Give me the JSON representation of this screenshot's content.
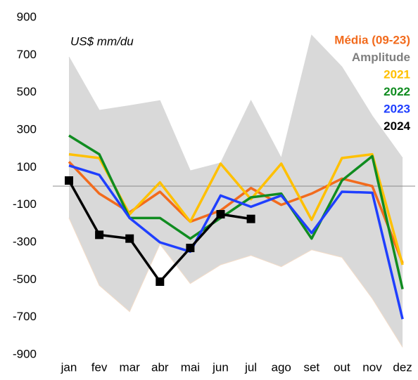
{
  "chart_data": {
    "type": "line",
    "subtitle": "US$ mm/du",
    "categories": [
      "jan",
      "fev",
      "mar",
      "abr",
      "mai",
      "jun",
      "jul",
      "ago",
      "set",
      "out",
      "nov",
      "dez"
    ],
    "band": {
      "name": "Amplitude",
      "color": "#d9d9d9",
      "label_color": "#7f7f7f",
      "upper": [
        690,
        405,
        430,
        457,
        82,
        124,
        457,
        150,
        806,
        637,
        375,
        150
      ],
      "lower": [
        -170,
        -530,
        -670,
        -310,
        -520,
        -420,
        -370,
        -430,
        -340,
        -380,
        -600,
        -860
      ]
    },
    "series": [
      {
        "name": "Média (09-23)",
        "color": "#f26b1d",
        "values": [
          130,
          -40,
          -140,
          -30,
          -190,
          -130,
          -10,
          -100,
          -40,
          40,
          0,
          -410
        ]
      },
      {
        "name": "2021",
        "color": "#ffc000",
        "values": [
          170,
          150,
          -150,
          20,
          -190,
          120,
          -70,
          120,
          -180,
          150,
          170,
          -420
        ]
      },
      {
        "name": "2022",
        "color": "#108c20",
        "values": [
          270,
          170,
          -170,
          -170,
          -280,
          -170,
          -60,
          -40,
          -280,
          30,
          160,
          -550
        ]
      },
      {
        "name": "2023",
        "color": "#1f3fff",
        "values": [
          110,
          60,
          -170,
          -300,
          -350,
          -50,
          -110,
          -50,
          -250,
          -30,
          -35,
          -710
        ]
      },
      {
        "name": "2024",
        "color": "#000000",
        "markers": true,
        "values": [
          30,
          -260,
          -280,
          -510,
          -330,
          -150,
          -175,
          null,
          null,
          null,
          null,
          null
        ]
      }
    ],
    "ylim": [
      -900,
      900
    ],
    "yticks": [
      -900,
      -700,
      -500,
      -300,
      -100,
      100,
      300,
      500,
      700,
      900
    ],
    "zero_line": 0
  }
}
